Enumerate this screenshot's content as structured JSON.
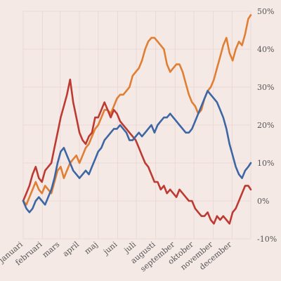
{
  "chart_data": {
    "type": "line",
    "title": "",
    "xlabel": "",
    "ylabel": "",
    "x_unit": "day of year",
    "x_ticks": [
      {
        "label": "januari",
        "day": 0
      },
      {
        "label": "februari",
        "day": 31
      },
      {
        "label": "mars",
        "day": 59
      },
      {
        "label": "april",
        "day": 90
      },
      {
        "label": "maj",
        "day": 120
      },
      {
        "label": "juni",
        "day": 151
      },
      {
        "label": "juli",
        "day": 181
      },
      {
        "label": "augusti",
        "day": 212
      },
      {
        "label": "september",
        "day": 243
      },
      {
        "label": "oktober",
        "day": 273
      },
      {
        "label": "november",
        "day": 304
      },
      {
        "label": "december",
        "day": 334
      }
    ],
    "xlim": [
      0,
      364
    ],
    "ylim": [
      -10,
      50
    ],
    "y_ticks": [
      {
        "label": "50%",
        "value": 50
      },
      {
        "label": "40%",
        "value": 40
      },
      {
        "label": "30%",
        "value": 30
      },
      {
        "label": "20%",
        "value": 20
      },
      {
        "label": "10%",
        "value": 10
      },
      {
        "label": "0%",
        "value": 0
      },
      {
        "label": "-10%",
        "value": -10
      }
    ],
    "grid": true,
    "series": [
      {
        "color": "#e07f33",
        "points": [
          [
            0,
            0
          ],
          [
            5,
            -1
          ],
          [
            10,
            1
          ],
          [
            15,
            3
          ],
          [
            20,
            5
          ],
          [
            25,
            3
          ],
          [
            30,
            2
          ],
          [
            35,
            4
          ],
          [
            40,
            3
          ],
          [
            45,
            2
          ],
          [
            50,
            5
          ],
          [
            55,
            8
          ],
          [
            60,
            9
          ],
          [
            65,
            6
          ],
          [
            70,
            8
          ],
          [
            75,
            10
          ],
          [
            80,
            11
          ],
          [
            85,
            12
          ],
          [
            90,
            10
          ],
          [
            95,
            12
          ],
          [
            100,
            14
          ],
          [
            105,
            15
          ],
          [
            110,
            17
          ],
          [
            115,
            19
          ],
          [
            120,
            20
          ],
          [
            125,
            22
          ],
          [
            130,
            24
          ],
          [
            135,
            24
          ],
          [
            140,
            23
          ],
          [
            145,
            25
          ],
          [
            150,
            27
          ],
          [
            155,
            28
          ],
          [
            160,
            28
          ],
          [
            165,
            29
          ],
          [
            170,
            30
          ],
          [
            175,
            33
          ],
          [
            180,
            34
          ],
          [
            185,
            35
          ],
          [
            190,
            37
          ],
          [
            195,
            40
          ],
          [
            200,
            42
          ],
          [
            205,
            43
          ],
          [
            210,
            43
          ],
          [
            215,
            42
          ],
          [
            220,
            41
          ],
          [
            225,
            40
          ],
          [
            230,
            36
          ],
          [
            235,
            34
          ],
          [
            240,
            35
          ],
          [
            245,
            36
          ],
          [
            250,
            36
          ],
          [
            255,
            34
          ],
          [
            260,
            31
          ],
          [
            265,
            28
          ],
          [
            270,
            26
          ],
          [
            275,
            25
          ],
          [
            280,
            23
          ],
          [
            285,
            24
          ],
          [
            290,
            27
          ],
          [
            295,
            29
          ],
          [
            300,
            30
          ],
          [
            305,
            32
          ],
          [
            310,
            35
          ],
          [
            315,
            38
          ],
          [
            320,
            41
          ],
          [
            325,
            43
          ],
          [
            330,
            39
          ],
          [
            335,
            37
          ],
          [
            340,
            40
          ],
          [
            345,
            42
          ],
          [
            350,
            41
          ],
          [
            355,
            44
          ],
          [
            360,
            48
          ],
          [
            364,
            49
          ]
        ]
      },
      {
        "color": "#bd3a32",
        "points": [
          [
            0,
            0
          ],
          [
            5,
            2
          ],
          [
            10,
            4
          ],
          [
            15,
            7
          ],
          [
            20,
            9
          ],
          [
            25,
            6
          ],
          [
            30,
            5
          ],
          [
            35,
            8
          ],
          [
            40,
            9
          ],
          [
            45,
            10
          ],
          [
            50,
            14
          ],
          [
            55,
            18
          ],
          [
            60,
            22
          ],
          [
            65,
            25
          ],
          [
            70,
            28
          ],
          [
            75,
            32
          ],
          [
            80,
            26
          ],
          [
            85,
            22
          ],
          [
            90,
            18
          ],
          [
            95,
            16
          ],
          [
            100,
            15
          ],
          [
            105,
            17
          ],
          [
            110,
            18
          ],
          [
            115,
            22
          ],
          [
            120,
            22
          ],
          [
            125,
            24
          ],
          [
            130,
            26
          ],
          [
            135,
            24
          ],
          [
            140,
            22
          ],
          [
            145,
            24
          ],
          [
            150,
            23
          ],
          [
            155,
            21
          ],
          [
            160,
            20
          ],
          [
            165,
            19
          ],
          [
            170,
            18
          ],
          [
            175,
            17
          ],
          [
            180,
            16
          ],
          [
            185,
            14
          ],
          [
            190,
            12
          ],
          [
            195,
            10
          ],
          [
            200,
            9
          ],
          [
            205,
            7
          ],
          [
            210,
            5
          ],
          [
            215,
            5
          ],
          [
            220,
            3
          ],
          [
            225,
            4
          ],
          [
            230,
            2
          ],
          [
            235,
            3
          ],
          [
            240,
            2
          ],
          [
            245,
            1
          ],
          [
            250,
            3
          ],
          [
            255,
            2
          ],
          [
            260,
            1
          ],
          [
            265,
            0
          ],
          [
            270,
            0
          ],
          [
            275,
            -2
          ],
          [
            280,
            -3
          ],
          [
            285,
            -4
          ],
          [
            290,
            -4
          ],
          [
            295,
            -3
          ],
          [
            300,
            -5
          ],
          [
            305,
            -6
          ],
          [
            310,
            -4
          ],
          [
            315,
            -5
          ],
          [
            320,
            -4
          ],
          [
            325,
            -5
          ],
          [
            330,
            -6
          ],
          [
            335,
            -3
          ],
          [
            340,
            -2
          ],
          [
            345,
            0
          ],
          [
            350,
            2
          ],
          [
            355,
            4
          ],
          [
            360,
            4
          ],
          [
            364,
            3
          ]
        ]
      },
      {
        "color": "#3c66a4",
        "points": [
          [
            0,
            0
          ],
          [
            5,
            -2
          ],
          [
            10,
            -3
          ],
          [
            15,
            -2
          ],
          [
            20,
            0
          ],
          [
            25,
            1
          ],
          [
            30,
            0
          ],
          [
            35,
            -1
          ],
          [
            40,
            1
          ],
          [
            45,
            3
          ],
          [
            50,
            6
          ],
          [
            55,
            10
          ],
          [
            60,
            13
          ],
          [
            65,
            14
          ],
          [
            70,
            12
          ],
          [
            75,
            10
          ],
          [
            80,
            8
          ],
          [
            85,
            7
          ],
          [
            90,
            6
          ],
          [
            95,
            7
          ],
          [
            100,
            8
          ],
          [
            105,
            7
          ],
          [
            110,
            9
          ],
          [
            115,
            11
          ],
          [
            120,
            13
          ],
          [
            125,
            14
          ],
          [
            130,
            16
          ],
          [
            135,
            17
          ],
          [
            140,
            18
          ],
          [
            145,
            19
          ],
          [
            150,
            19
          ],
          [
            155,
            20
          ],
          [
            160,
            19
          ],
          [
            165,
            18
          ],
          [
            170,
            16
          ],
          [
            175,
            16
          ],
          [
            180,
            17
          ],
          [
            185,
            18
          ],
          [
            190,
            17
          ],
          [
            195,
            18
          ],
          [
            200,
            19
          ],
          [
            205,
            20
          ],
          [
            210,
            18
          ],
          [
            215,
            20
          ],
          [
            220,
            21
          ],
          [
            225,
            22
          ],
          [
            230,
            22
          ],
          [
            235,
            23
          ],
          [
            240,
            22
          ],
          [
            245,
            21
          ],
          [
            250,
            20
          ],
          [
            255,
            19
          ],
          [
            260,
            18
          ],
          [
            265,
            18
          ],
          [
            270,
            19
          ],
          [
            275,
            21
          ],
          [
            280,
            23
          ],
          [
            285,
            25
          ],
          [
            290,
            27
          ],
          [
            295,
            29
          ],
          [
            300,
            28
          ],
          [
            305,
            27
          ],
          [
            310,
            26
          ],
          [
            315,
            24
          ],
          [
            320,
            22
          ],
          [
            325,
            19
          ],
          [
            330,
            15
          ],
          [
            335,
            12
          ],
          [
            340,
            9
          ],
          [
            345,
            7
          ],
          [
            350,
            6
          ],
          [
            355,
            8
          ],
          [
            360,
            9
          ],
          [
            364,
            10
          ]
        ]
      }
    ]
  }
}
